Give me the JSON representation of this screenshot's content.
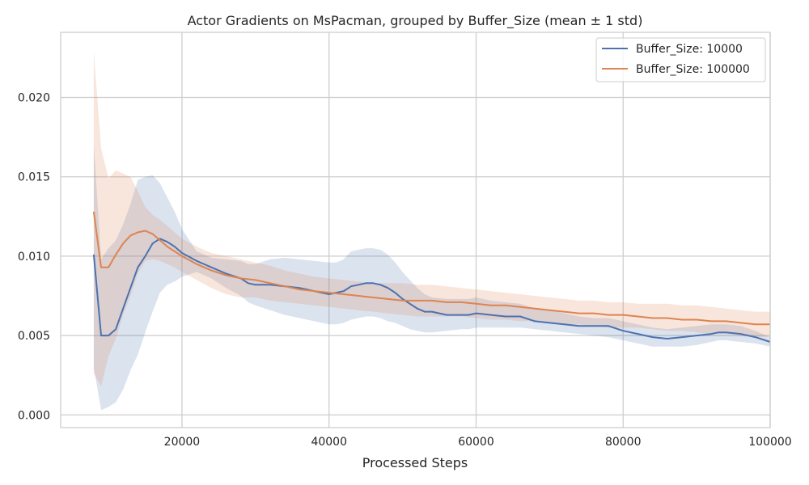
{
  "chart_data": {
    "type": "line",
    "title": "Actor Gradients on MsPacman, grouped by Buffer_Size (mean ± 1 std)",
    "xlabel": "Processed Steps",
    "ylabel": "",
    "xlim": [
      3500,
      100000
    ],
    "ylim": [
      -0.0008,
      0.0241
    ],
    "x_ticks": [
      20000,
      40000,
      60000,
      80000,
      100000
    ],
    "x_tick_labels": [
      "20000",
      "40000",
      "60000",
      "80000",
      "100000"
    ],
    "y_ticks": [
      0.0,
      0.005,
      0.01,
      0.015,
      0.02
    ],
    "y_tick_labels": [
      "0.000",
      "0.005",
      "0.010",
      "0.015",
      "0.020"
    ],
    "grid": true,
    "legend_position": "top-right",
    "series": [
      {
        "name": "Buffer_Size: 10000",
        "color": "#4c72b0",
        "x": [
          8000,
          9000,
          10000,
          11000,
          12000,
          13000,
          14000,
          15000,
          16000,
          17000,
          18000,
          19000,
          20000,
          22000,
          24000,
          26000,
          28000,
          29000,
          30000,
          32000,
          34000,
          36000,
          38000,
          40000,
          41000,
          42000,
          43000,
          44000,
          45000,
          46000,
          47000,
          48000,
          49000,
          50000,
          51000,
          52000,
          53000,
          54000,
          56000,
          58000,
          59000,
          60000,
          62000,
          64000,
          66000,
          68000,
          70000,
          72000,
          74000,
          76000,
          78000,
          80000,
          82000,
          84000,
          86000,
          88000,
          90000,
          92000,
          93000,
          94000,
          96000,
          98000,
          100000
        ],
        "mean": [
          0.0101,
          0.005,
          0.005,
          0.0054,
          0.0067,
          0.008,
          0.0093,
          0.01,
          0.0108,
          0.0111,
          0.0109,
          0.0106,
          0.0102,
          0.0097,
          0.0093,
          0.0089,
          0.0086,
          0.0083,
          0.0082,
          0.0082,
          0.0081,
          0.008,
          0.0078,
          0.0076,
          0.0077,
          0.0078,
          0.0081,
          0.0082,
          0.0083,
          0.0083,
          0.0082,
          0.008,
          0.0077,
          0.0073,
          0.007,
          0.0067,
          0.0065,
          0.0065,
          0.0063,
          0.0063,
          0.0063,
          0.0064,
          0.0063,
          0.0062,
          0.0062,
          0.0059,
          0.0058,
          0.0057,
          0.0056,
          0.0056,
          0.0056,
          0.0053,
          0.0051,
          0.0049,
          0.0048,
          0.0049,
          0.005,
          0.0051,
          0.0052,
          0.0052,
          0.0051,
          0.0049,
          0.0046
        ],
        "upper": [
          0.0171,
          0.0098,
          0.0105,
          0.011,
          0.012,
          0.0133,
          0.0148,
          0.015,
          0.0151,
          0.0146,
          0.0137,
          0.0128,
          0.0117,
          0.0103,
          0.0099,
          0.0098,
          0.0097,
          0.0095,
          0.0095,
          0.0098,
          0.0099,
          0.0098,
          0.0097,
          0.0096,
          0.0096,
          0.0098,
          0.0103,
          0.0104,
          0.0105,
          0.0105,
          0.0104,
          0.0101,
          0.0096,
          0.009,
          0.0085,
          0.008,
          0.0076,
          0.0074,
          0.0073,
          0.0073,
          0.0073,
          0.0074,
          0.0072,
          0.0071,
          0.007,
          0.0067,
          0.0066,
          0.0064,
          0.0062,
          0.0061,
          0.0061,
          0.0059,
          0.0057,
          0.0055,
          0.0054,
          0.0055,
          0.0056,
          0.0057,
          0.0057,
          0.0057,
          0.0056,
          0.0053,
          0.0049
        ],
        "lower": [
          0.003,
          0.0003,
          0.0005,
          0.0008,
          0.0016,
          0.0028,
          0.0038,
          0.0052,
          0.0065,
          0.0077,
          0.0082,
          0.0084,
          0.0087,
          0.009,
          0.0086,
          0.008,
          0.0075,
          0.0071,
          0.0069,
          0.0066,
          0.0063,
          0.0061,
          0.0059,
          0.0057,
          0.0057,
          0.0058,
          0.006,
          0.0061,
          0.0062,
          0.0062,
          0.0061,
          0.0059,
          0.0058,
          0.0056,
          0.0054,
          0.0053,
          0.0052,
          0.0052,
          0.0053,
          0.0054,
          0.0054,
          0.0055,
          0.0055,
          0.0055,
          0.0055,
          0.0054,
          0.0053,
          0.0052,
          0.0051,
          0.005,
          0.0049,
          0.0047,
          0.0045,
          0.0043,
          0.0043,
          0.0043,
          0.0044,
          0.0046,
          0.0047,
          0.0047,
          0.0046,
          0.0045,
          0.0043
        ]
      },
      {
        "name": "Buffer_Size: 100000",
        "color": "#dd8452",
        "x": [
          8000,
          9000,
          10000,
          11000,
          12000,
          13000,
          14000,
          15000,
          16000,
          17000,
          18000,
          19000,
          20000,
          22000,
          24000,
          26000,
          28000,
          30000,
          32000,
          34000,
          36000,
          38000,
          40000,
          42000,
          44000,
          46000,
          48000,
          50000,
          52000,
          54000,
          56000,
          58000,
          60000,
          62000,
          64000,
          66000,
          68000,
          70000,
          72000,
          74000,
          76000,
          78000,
          80000,
          82000,
          84000,
          86000,
          88000,
          90000,
          92000,
          94000,
          96000,
          98000,
          100000
        ],
        "mean": [
          0.0128,
          0.0093,
          0.0093,
          0.0101,
          0.0108,
          0.0113,
          0.0115,
          0.0116,
          0.0114,
          0.011,
          0.0106,
          0.0103,
          0.01,
          0.0095,
          0.0091,
          0.0088,
          0.0086,
          0.0085,
          0.0083,
          0.0081,
          0.0079,
          0.0078,
          0.0077,
          0.0076,
          0.0075,
          0.0074,
          0.0073,
          0.0072,
          0.0072,
          0.0072,
          0.0071,
          0.0071,
          0.007,
          0.0069,
          0.0069,
          0.0068,
          0.0067,
          0.0066,
          0.0065,
          0.0064,
          0.0064,
          0.0063,
          0.0063,
          0.0062,
          0.0061,
          0.0061,
          0.006,
          0.006,
          0.0059,
          0.0059,
          0.0058,
          0.0057,
          0.0057
        ],
        "upper": [
          0.0229,
          0.0168,
          0.0149,
          0.0154,
          0.0152,
          0.015,
          0.0141,
          0.0131,
          0.0126,
          0.0123,
          0.0119,
          0.0115,
          0.0111,
          0.0106,
          0.0102,
          0.01,
          0.0098,
          0.0096,
          0.0094,
          0.0091,
          0.0089,
          0.0087,
          0.0086,
          0.0085,
          0.0084,
          0.0083,
          0.0083,
          0.0083,
          0.0082,
          0.0082,
          0.0081,
          0.008,
          0.0079,
          0.0078,
          0.0077,
          0.0076,
          0.0075,
          0.0074,
          0.0073,
          0.0072,
          0.0072,
          0.0071,
          0.0071,
          0.007,
          0.007,
          0.007,
          0.0069,
          0.0069,
          0.0068,
          0.0067,
          0.0066,
          0.0065,
          0.0065
        ],
        "lower": [
          0.0026,
          0.0018,
          0.0037,
          0.0048,
          0.0063,
          0.0075,
          0.0089,
          0.0097,
          0.0098,
          0.0097,
          0.0095,
          0.0093,
          0.009,
          0.0085,
          0.008,
          0.0076,
          0.0074,
          0.0074,
          0.0072,
          0.0071,
          0.007,
          0.0069,
          0.0068,
          0.0067,
          0.0066,
          0.0065,
          0.0064,
          0.0063,
          0.0062,
          0.0062,
          0.0062,
          0.0062,
          0.0061,
          0.006,
          0.006,
          0.0059,
          0.0059,
          0.0058,
          0.0057,
          0.0057,
          0.0056,
          0.0055,
          0.0055,
          0.0055,
          0.0054,
          0.0053,
          0.0053,
          0.0052,
          0.0051,
          0.0051,
          0.005,
          0.0049,
          0.0049
        ]
      }
    ]
  }
}
